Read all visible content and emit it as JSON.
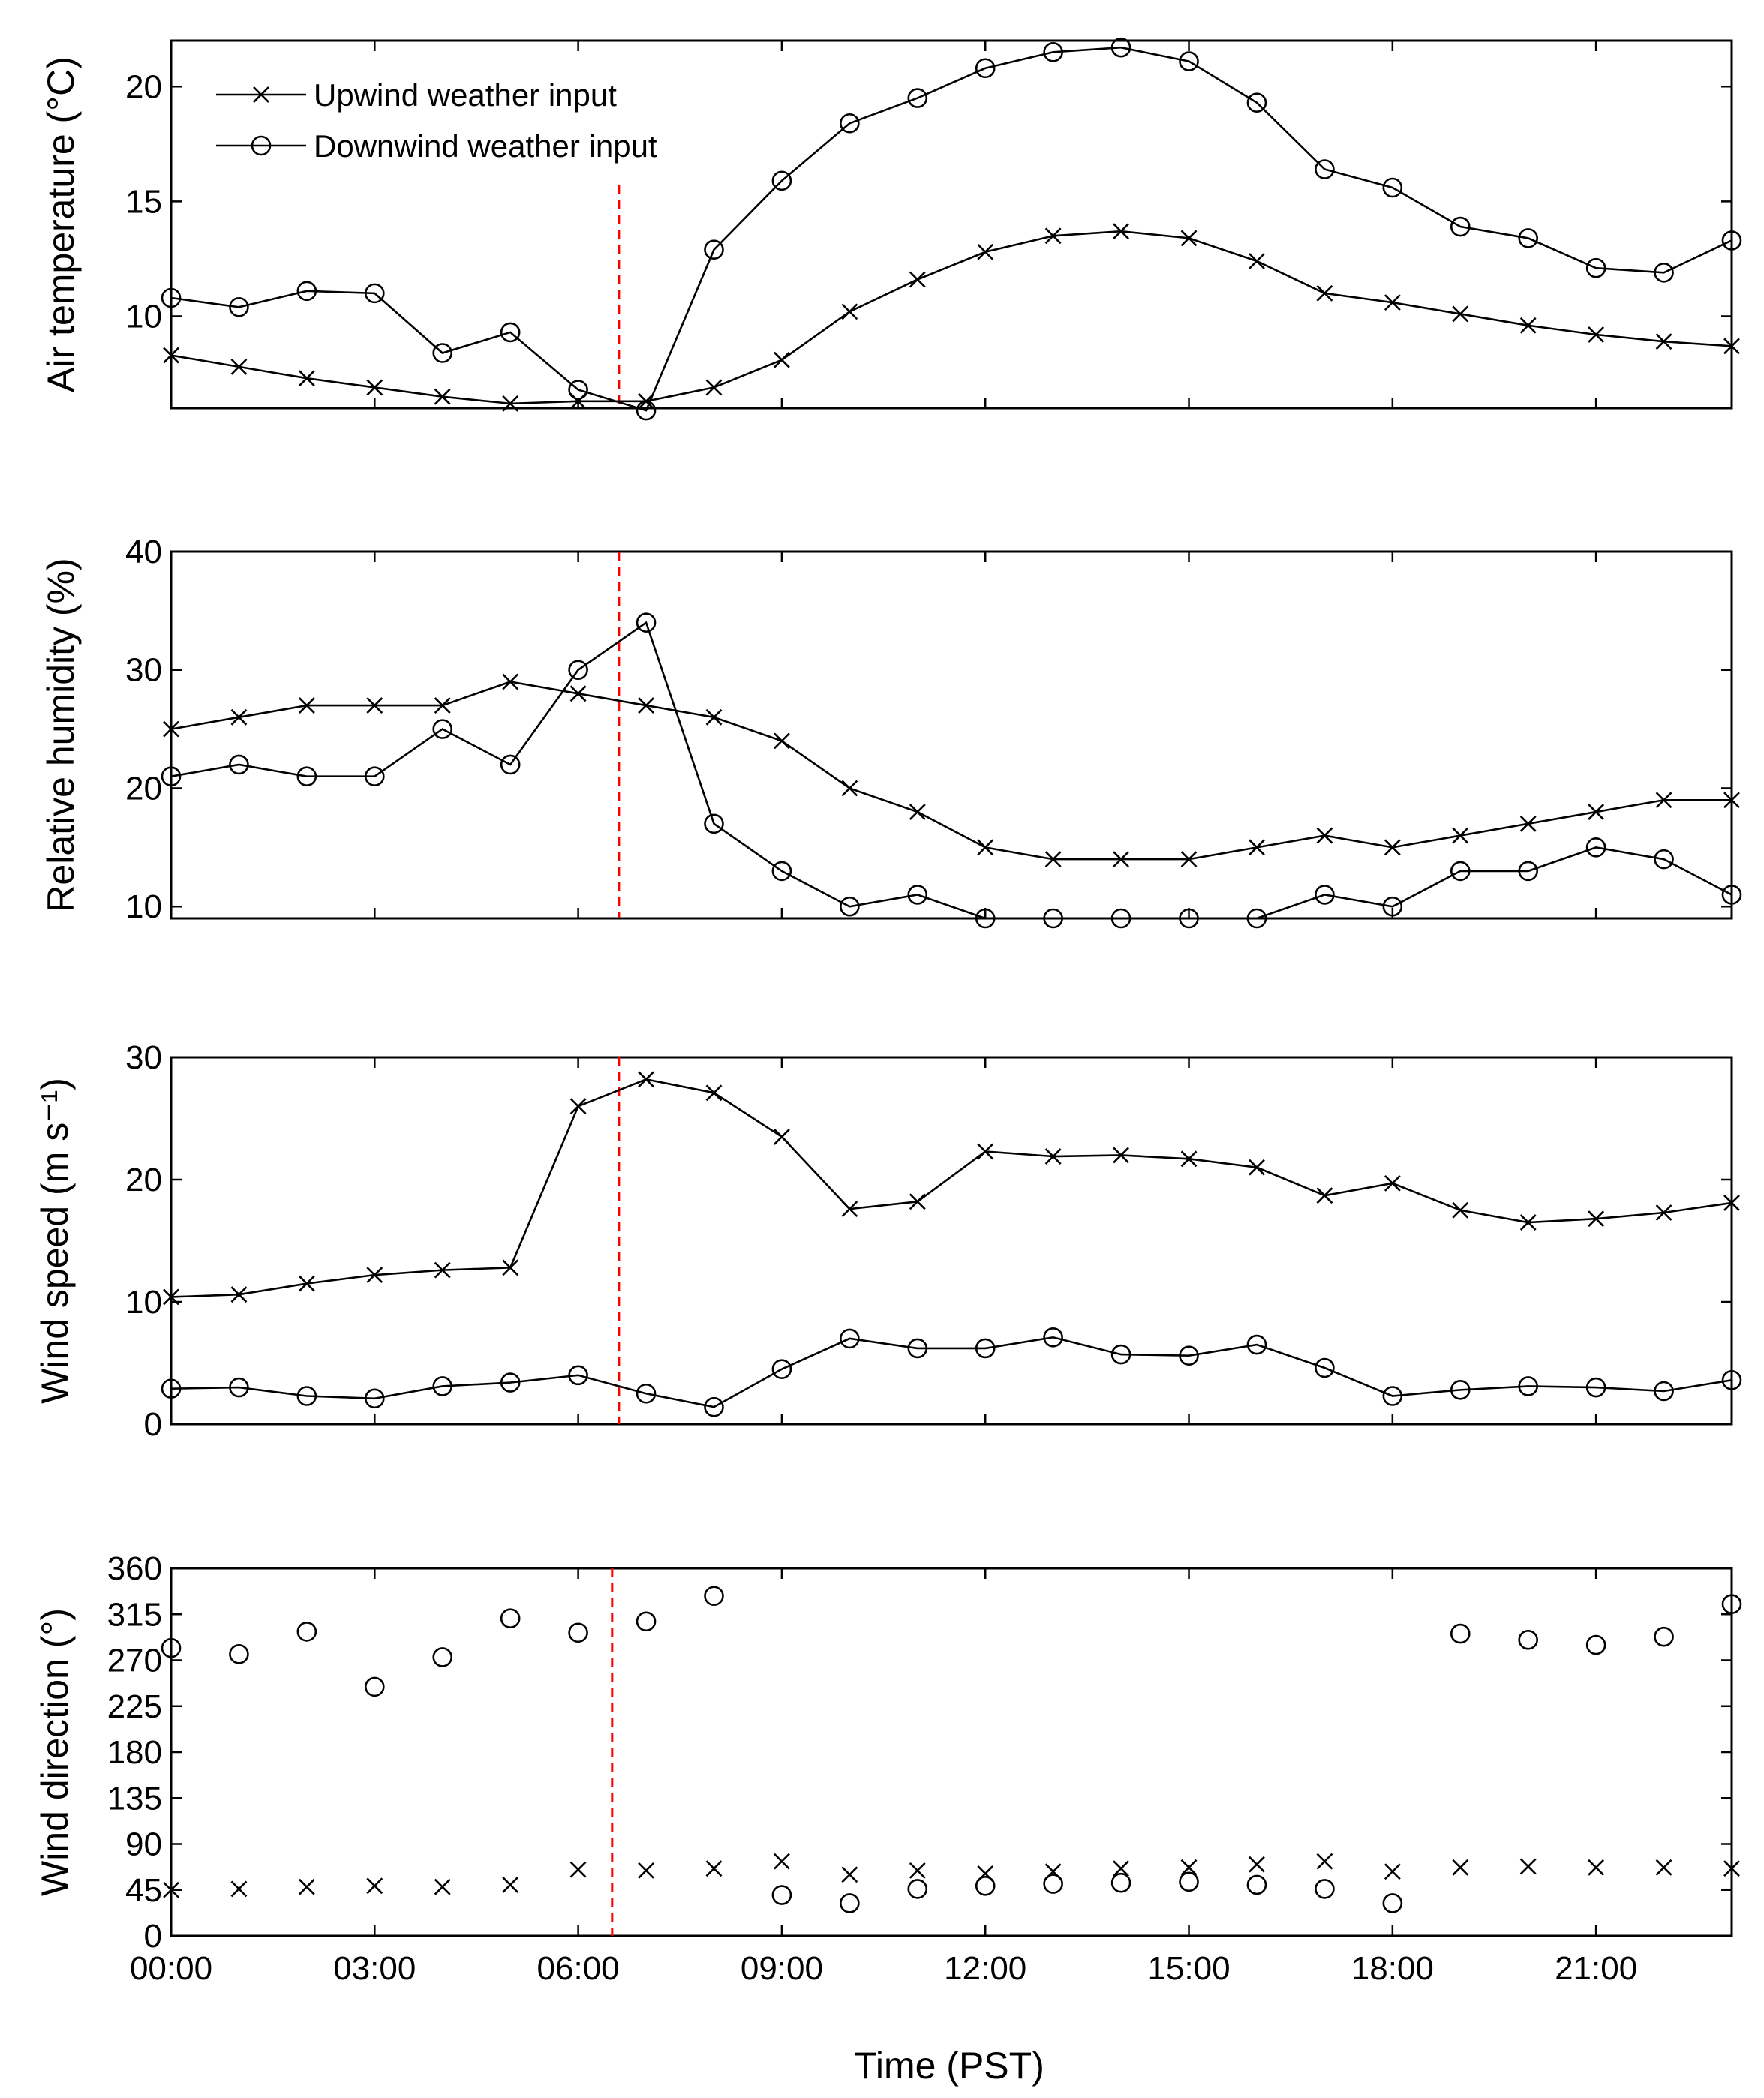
{
  "figure": {
    "xlabel": "Time (PST)",
    "legend": [
      "Upwind weather input",
      "Downwind weather input"
    ]
  },
  "colors": {
    "axis": "#000000",
    "reference_line": "#ff0000"
  },
  "chart_data": [
    {
      "type": "line",
      "id": "air-temperature",
      "ylabel": "Air temperature (°C)",
      "ylim": [
        6,
        22
      ],
      "yticks": [
        10,
        15,
        20
      ],
      "xlim": [
        0,
        23
      ],
      "x": [
        0,
        1,
        2,
        3,
        4,
        5,
        6,
        7,
        8,
        9,
        10,
        11,
        12,
        13,
        14,
        15,
        16,
        17,
        18,
        19,
        20,
        21,
        22,
        23
      ],
      "xtick_values": [
        0,
        3,
        6,
        9,
        12,
        15,
        18,
        21
      ],
      "xtick_labels": [
        "00:00",
        "03:00",
        "06:00",
        "09:00",
        "12:00",
        "15:00",
        "18:00",
        "21:00"
      ],
      "show_xtick_labels": false,
      "reference_x": 6.6,
      "series": [
        {
          "name": "Upwind weather input",
          "marker": "x",
          "line": true,
          "values": [
            8.3,
            7.8,
            7.3,
            6.9,
            6.5,
            6.2,
            6.3,
            6.3,
            6.9,
            8.1,
            10.2,
            11.6,
            12.8,
            13.5,
            13.7,
            13.4,
            12.4,
            11.0,
            10.6,
            10.1,
            9.6,
            9.2,
            8.9,
            8.7
          ]
        },
        {
          "name": "Downwind weather input",
          "marker": "o",
          "line": true,
          "values": [
            10.8,
            10.4,
            11.1,
            11.0,
            8.4,
            9.3,
            6.8,
            5.9,
            12.9,
            15.9,
            18.4,
            19.5,
            20.8,
            21.5,
            21.7,
            21.1,
            19.3,
            16.4,
            15.6,
            13.9,
            13.4,
            12.1,
            11.9,
            13.3
          ]
        }
      ]
    },
    {
      "type": "line",
      "id": "relative-humidity",
      "ylabel": "Relative humidity (%)",
      "ylim": [
        9,
        40
      ],
      "yticks": [
        10,
        20,
        30,
        40
      ],
      "xlim": [
        0,
        23
      ],
      "x": [
        0,
        1,
        2,
        3,
        4,
        5,
        6,
        7,
        8,
        9,
        10,
        11,
        12,
        13,
        14,
        15,
        16,
        17,
        18,
        19,
        20,
        21,
        22,
        23
      ],
      "xtick_values": [
        0,
        3,
        6,
        9,
        12,
        15,
        18,
        21
      ],
      "show_xtick_labels": false,
      "reference_x": 6.6,
      "series": [
        {
          "name": "Upwind weather input",
          "marker": "x",
          "line": true,
          "values": [
            25,
            26,
            27,
            27,
            27,
            29,
            28,
            27,
            26,
            24,
            20,
            18,
            15,
            14,
            14,
            14,
            15,
            16,
            15,
            16,
            17,
            18,
            19,
            19
          ]
        },
        {
          "name": "Downwind weather input",
          "marker": "o",
          "line": true,
          "values": [
            21,
            22,
            21,
            21,
            25,
            22,
            30,
            34,
            17,
            13,
            10,
            11,
            9,
            9,
            9,
            9,
            9,
            11,
            10,
            13,
            13,
            15,
            14,
            11
          ]
        }
      ]
    },
    {
      "type": "line",
      "id": "wind-speed",
      "ylabel": "Wind speed (m s⁻¹)",
      "ylim": [
        0,
        30
      ],
      "yticks": [
        0,
        10,
        20,
        30
      ],
      "xlim": [
        0,
        23
      ],
      "x": [
        0,
        1,
        2,
        3,
        4,
        5,
        6,
        7,
        8,
        9,
        10,
        11,
        12,
        13,
        14,
        15,
        16,
        17,
        18,
        19,
        20,
        21,
        22,
        23
      ],
      "xtick_values": [
        0,
        3,
        6,
        9,
        12,
        15,
        18,
        21
      ],
      "show_xtick_labels": false,
      "reference_x": 6.6,
      "series": [
        {
          "name": "Upwind weather input",
          "marker": "x",
          "line": true,
          "values": [
            10.4,
            10.6,
            11.5,
            12.2,
            12.6,
            12.8,
            26.0,
            28.2,
            27.1,
            23.5,
            17.6,
            18.2,
            22.3,
            21.9,
            22.0,
            21.7,
            21.0,
            18.7,
            19.7,
            17.5,
            16.5,
            16.8,
            17.3,
            18.1
          ]
        },
        {
          "name": "Downwind weather input",
          "marker": "o",
          "line": true,
          "values": [
            2.9,
            3.0,
            2.3,
            2.1,
            3.1,
            3.4,
            4.0,
            2.5,
            1.4,
            4.5,
            7.0,
            6.2,
            6.2,
            7.1,
            5.7,
            5.6,
            6.5,
            4.6,
            2.3,
            2.8,
            3.1,
            3.0,
            2.7,
            3.6
          ]
        }
      ]
    },
    {
      "type": "scatter",
      "id": "wind-direction",
      "ylabel": "Wind direction (°)",
      "ylim": [
        0,
        360
      ],
      "yticks": [
        0,
        45,
        90,
        135,
        180,
        225,
        270,
        315,
        360
      ],
      "xlim": [
        0,
        23
      ],
      "x": [
        0,
        1,
        2,
        3,
        4,
        5,
        6,
        7,
        8,
        9,
        10,
        11,
        12,
        13,
        14,
        15,
        16,
        17,
        18,
        19,
        20,
        21,
        22,
        23
      ],
      "xtick_values": [
        0,
        3,
        6,
        9,
        12,
        15,
        18,
        21
      ],
      "xtick_labels": [
        "00:00",
        "03:00",
        "06:00",
        "09:00",
        "12:00",
        "15:00",
        "18:00",
        "21:00"
      ],
      "show_xtick_labels": true,
      "reference_x": 6.5,
      "series": [
        {
          "name": "Upwind weather input",
          "marker": "x",
          "line": false,
          "values": [
            45,
            46,
            48,
            49,
            48,
            50,
            65,
            64,
            66,
            73,
            60,
            64,
            61,
            63,
            66,
            67,
            70,
            73,
            63,
            67,
            68,
            67,
            67,
            66
          ]
        },
        {
          "name": "Downwind weather input",
          "marker": "o",
          "line": false,
          "values": [
            282,
            276,
            298,
            244,
            273,
            311,
            297,
            308,
            333,
            40,
            32,
            46,
            49,
            51,
            52,
            53,
            50,
            46,
            32,
            296,
            290,
            285,
            293,
            325
          ]
        }
      ]
    }
  ]
}
